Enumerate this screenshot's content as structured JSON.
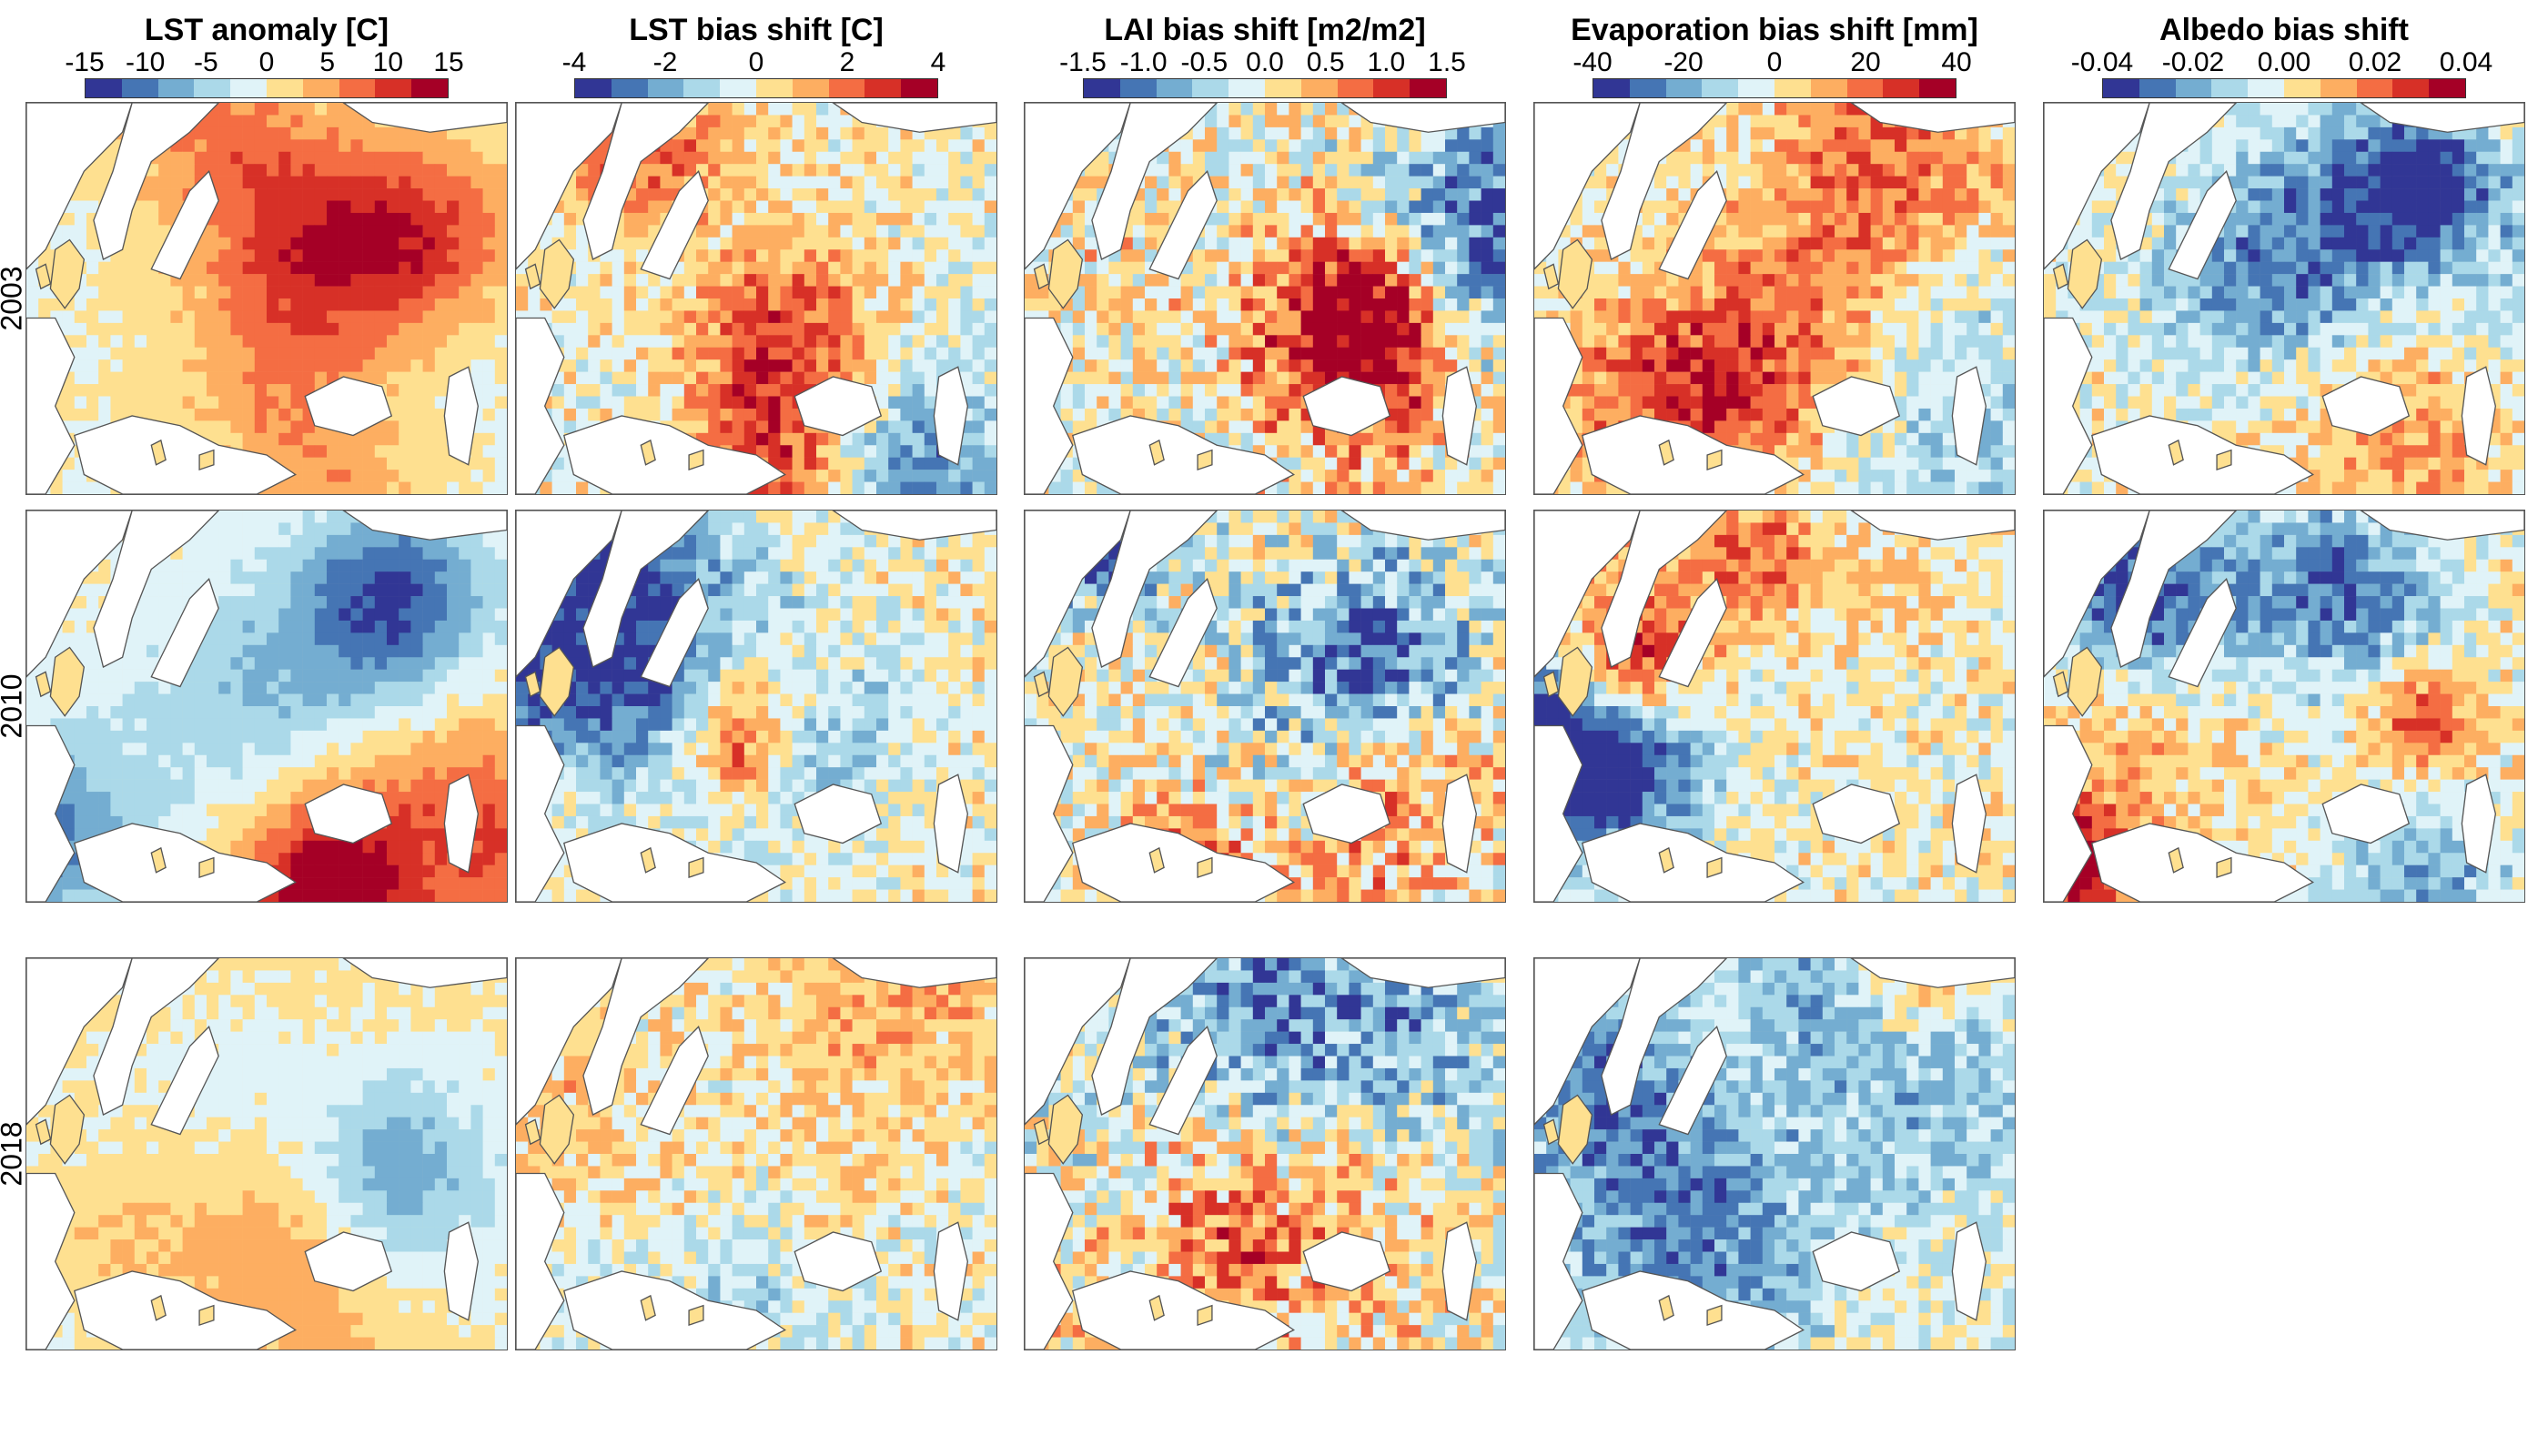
{
  "figure": {
    "columns": [
      {
        "title": "LST anomaly [C]",
        "ticks": [
          "-15",
          "-10",
          "-5",
          "0",
          "5",
          "10",
          "15"
        ],
        "colormap": [
          "#313695",
          "#4575b4",
          "#74add1",
          "#abd9e9",
          "#e0f3f8",
          "#fee090",
          "#fdae61",
          "#f46d43",
          "#d73027",
          "#a50026"
        ]
      },
      {
        "title": "LST bias shift [C]",
        "ticks": [
          "-4",
          "-2",
          "0",
          "2",
          "4"
        ],
        "colormap": [
          "#313695",
          "#4575b4",
          "#74add1",
          "#abd9e9",
          "#e0f3f8",
          "#fee090",
          "#fdae61",
          "#f46d43",
          "#d73027",
          "#a50026"
        ]
      },
      {
        "title": "LAI bias shift [m2/m2]",
        "ticks": [
          "-1.5",
          "-1.0",
          "-0.5",
          "0.0",
          "0.5",
          "1.0",
          "1.5"
        ],
        "colormap": [
          "#313695",
          "#4575b4",
          "#74add1",
          "#abd9e9",
          "#e0f3f8",
          "#fee090",
          "#fdae61",
          "#f46d43",
          "#d73027",
          "#a50026"
        ]
      },
      {
        "title": "Evaporation bias shift [mm]",
        "ticks": [
          "-40",
          "-20",
          "0",
          "20",
          "40"
        ],
        "colormap": [
          "#313695",
          "#4575b4",
          "#74add1",
          "#abd9e9",
          "#e0f3f8",
          "#fee090",
          "#fdae61",
          "#f46d43",
          "#d73027",
          "#a50026"
        ]
      },
      {
        "title": "Albedo bias shift",
        "ticks": [
          "-0.04",
          "-0.02",
          "0.00",
          "0.02",
          "0.04"
        ],
        "colormap": [
          "#313695",
          "#4575b4",
          "#74add1",
          "#abd9e9",
          "#e0f3f8",
          "#fee090",
          "#fdae61",
          "#f46d43",
          "#d73027",
          "#a50026"
        ]
      }
    ],
    "rows": [
      "2003",
      "2010",
      "2018"
    ],
    "missing_panels": [
      {
        "row": "2018",
        "column": "Albedo bias shift"
      }
    ],
    "land_background_color": "#fee6a8",
    "ocean_color": "#ffffff",
    "coastline_color": "#555555"
  }
}
